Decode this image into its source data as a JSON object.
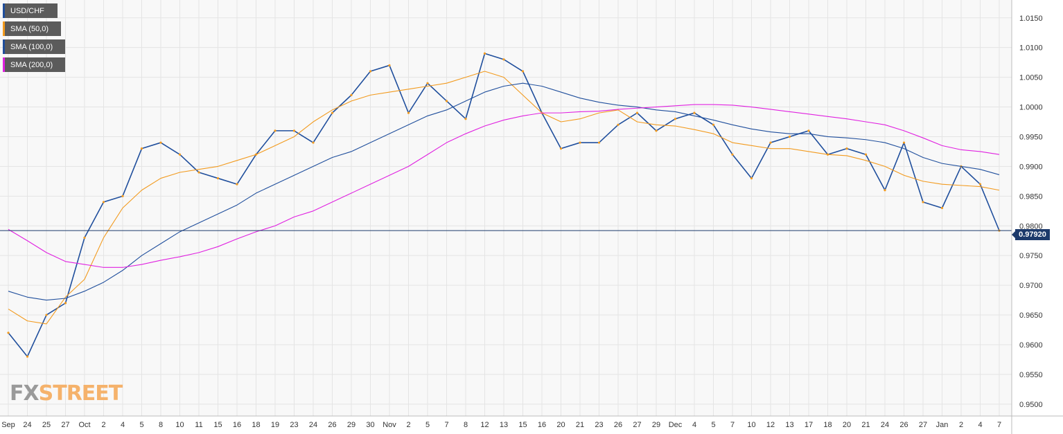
{
  "chart_data": {
    "type": "line",
    "title": "",
    "xlabel": "",
    "ylabel": "",
    "ylim": [
      0.948,
      1.018
    ],
    "grid": true,
    "legend_placement": "top-left",
    "y_ticks": [
      "1.0150",
      "1.0100",
      "1.0050",
      "1.0000",
      "0.9950",
      "0.9900",
      "0.9850",
      "0.9800",
      "0.9750",
      "0.9700",
      "0.9650",
      "0.9600",
      "0.9550",
      "0.9500"
    ],
    "x_ticks": [
      "Sep",
      "24",
      "25",
      "27",
      "Oct",
      "2",
      "4",
      "5",
      "8",
      "10",
      "11",
      "15",
      "16",
      "18",
      "19",
      "23",
      "24",
      "26",
      "29",
      "30",
      "Nov",
      "2",
      "5",
      "7",
      "8",
      "12",
      "13",
      "15",
      "16",
      "20",
      "21",
      "23",
      "26",
      "27",
      "29",
      "Dec",
      "4",
      "5",
      "7",
      "10",
      "12",
      "13",
      "17",
      "18",
      "20",
      "21",
      "24",
      "26",
      "27",
      "Jan",
      "2",
      "4",
      "7"
    ],
    "current_price_label": "0.97920",
    "current_price": 0.9792,
    "legend": [
      {
        "name": "USD/CHF",
        "color": "#1f4e9c"
      },
      {
        "name": "SMA (50,0)",
        "color": "#f29a1d"
      },
      {
        "name": "SMA (100,0)",
        "color": "#1f4e9c"
      },
      {
        "name": "SMA (200,0)",
        "color": "#e020e0"
      }
    ],
    "series": [
      {
        "name": "USD/CHF",
        "color": "#1f4e9c",
        "x": [
          0,
          1,
          2,
          3,
          4,
          5,
          6,
          7,
          8,
          9,
          10,
          11,
          12,
          13,
          14,
          15,
          16,
          17,
          18,
          19,
          20,
          21,
          22,
          23,
          24,
          25,
          26,
          27,
          28,
          29,
          30,
          31,
          32,
          33,
          34,
          35,
          36,
          37,
          38,
          39,
          40,
          41,
          42,
          43,
          44,
          45,
          46,
          47,
          48,
          49,
          50,
          51,
          52
        ],
        "values": [
          0.962,
          0.958,
          0.965,
          0.967,
          0.978,
          0.984,
          0.985,
          0.993,
          0.994,
          0.992,
          0.989,
          0.988,
          0.987,
          0.992,
          0.996,
          0.996,
          0.994,
          0.999,
          1.002,
          1.006,
          1.007,
          0.999,
          1.004,
          1.001,
          0.998,
          1.009,
          1.008,
          1.006,
          0.999,
          0.993,
          0.994,
          0.994,
          0.997,
          0.999,
          0.996,
          0.998,
          0.999,
          0.997,
          0.992,
          0.988,
          0.994,
          0.995,
          0.996,
          0.992,
          0.993,
          0.992,
          0.986,
          0.994,
          0.984,
          0.983,
          0.99,
          0.987,
          0.9792
        ]
      },
      {
        "name": "SMA (50,0)",
        "color": "#f29a1d",
        "x": [
          0,
          1,
          2,
          3,
          4,
          5,
          6,
          7,
          8,
          9,
          10,
          11,
          12,
          13,
          14,
          15,
          16,
          17,
          18,
          19,
          20,
          21,
          22,
          23,
          24,
          25,
          26,
          27,
          28,
          29,
          30,
          31,
          32,
          33,
          34,
          35,
          36,
          37,
          38,
          39,
          40,
          41,
          42,
          43,
          44,
          45,
          46,
          47,
          48,
          49,
          50,
          51,
          52
        ],
        "values": [
          0.966,
          0.964,
          0.9635,
          0.968,
          0.971,
          0.978,
          0.983,
          0.986,
          0.988,
          0.989,
          0.9895,
          0.99,
          0.991,
          0.992,
          0.9935,
          0.995,
          0.9975,
          0.9995,
          1.001,
          1.002,
          1.0025,
          1.003,
          1.0035,
          1.004,
          1.005,
          1.006,
          1.005,
          1.002,
          0.999,
          0.9975,
          0.998,
          0.999,
          0.9995,
          0.9975,
          0.997,
          0.9968,
          0.9962,
          0.9955,
          0.994,
          0.9935,
          0.993,
          0.993,
          0.9925,
          0.992,
          0.9918,
          0.991,
          0.99,
          0.9885,
          0.9875,
          0.987,
          0.9868,
          0.9866,
          0.986
        ]
      },
      {
        "name": "SMA (100,0)",
        "color": "#1f4e9c",
        "x": [
          0,
          1,
          2,
          3,
          4,
          5,
          6,
          7,
          8,
          9,
          10,
          11,
          12,
          13,
          14,
          15,
          16,
          17,
          18,
          19,
          20,
          21,
          22,
          23,
          24,
          25,
          26,
          27,
          28,
          29,
          30,
          31,
          32,
          33,
          34,
          35,
          36,
          37,
          38,
          39,
          40,
          41,
          42,
          43,
          44,
          45,
          46,
          47,
          48,
          49,
          50,
          51,
          52
        ],
        "values": [
          0.969,
          0.968,
          0.9675,
          0.9678,
          0.969,
          0.9705,
          0.9725,
          0.975,
          0.977,
          0.979,
          0.9805,
          0.982,
          0.9835,
          0.9855,
          0.987,
          0.9885,
          0.99,
          0.9915,
          0.9925,
          0.994,
          0.9955,
          0.997,
          0.9985,
          0.9995,
          1.001,
          1.0025,
          1.0035,
          1.004,
          1.0035,
          1.0025,
          1.0015,
          1.0008,
          1.0003,
          1.0,
          0.9995,
          0.9992,
          0.9985,
          0.9978,
          0.997,
          0.9963,
          0.9958,
          0.9955,
          0.9955,
          0.995,
          0.9948,
          0.9945,
          0.994,
          0.993,
          0.9915,
          0.9905,
          0.99,
          0.9895,
          0.9886
        ]
      },
      {
        "name": "SMA (200,0)",
        "color": "#e020e0",
        "x": [
          0,
          1,
          2,
          3,
          4,
          5,
          6,
          7,
          8,
          9,
          10,
          11,
          12,
          13,
          14,
          15,
          16,
          17,
          18,
          19,
          20,
          21,
          22,
          23,
          24,
          25,
          26,
          27,
          28,
          29,
          30,
          31,
          32,
          33,
          34,
          35,
          36,
          37,
          38,
          39,
          40,
          41,
          42,
          43,
          44,
          45,
          46,
          47,
          48,
          49,
          50,
          51,
          52
        ],
        "values": [
          0.9794,
          0.9775,
          0.9755,
          0.974,
          0.9735,
          0.973,
          0.973,
          0.9735,
          0.9742,
          0.9748,
          0.9755,
          0.9765,
          0.9778,
          0.979,
          0.98,
          0.9815,
          0.9825,
          0.984,
          0.9855,
          0.987,
          0.9885,
          0.99,
          0.992,
          0.994,
          0.9955,
          0.9968,
          0.9978,
          0.9985,
          0.999,
          0.999,
          0.9992,
          0.9993,
          0.9996,
          0.9998,
          1.0,
          1.0002,
          1.0004,
          1.0004,
          1.0003,
          1.0,
          0.9996,
          0.9992,
          0.9988,
          0.9984,
          0.998,
          0.9975,
          0.997,
          0.996,
          0.9948,
          0.9935,
          0.9928,
          0.9925,
          0.992
        ]
      }
    ]
  },
  "logo": {
    "part1": "FX",
    "part2": "STREET"
  }
}
